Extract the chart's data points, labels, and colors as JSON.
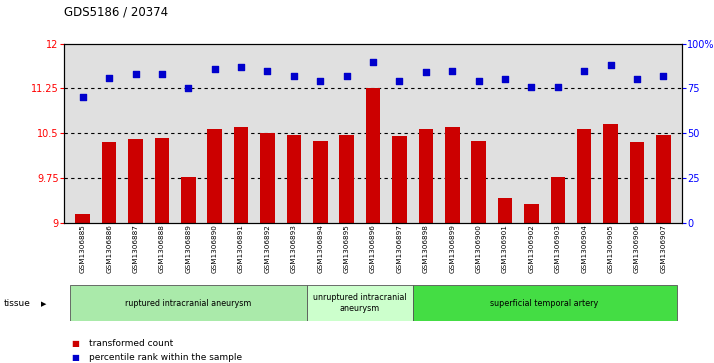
{
  "title": "GDS5186 / 20374",
  "samples": [
    "GSM1306885",
    "GSM1306886",
    "GSM1306887",
    "GSM1306888",
    "GSM1306889",
    "GSM1306890",
    "GSM1306891",
    "GSM1306892",
    "GSM1306893",
    "GSM1306894",
    "GSM1306895",
    "GSM1306896",
    "GSM1306897",
    "GSM1306898",
    "GSM1306899",
    "GSM1306900",
    "GSM1306901",
    "GSM1306902",
    "GSM1306903",
    "GSM1306904",
    "GSM1306905",
    "GSM1306906",
    "GSM1306907"
  ],
  "transformed_count": [
    9.15,
    10.35,
    10.4,
    10.42,
    9.78,
    10.58,
    10.6,
    10.5,
    10.47,
    10.38,
    10.47,
    11.25,
    10.46,
    10.58,
    10.6,
    10.38,
    9.42,
    9.32,
    9.78,
    10.57,
    10.65,
    10.35,
    10.47
  ],
  "percentile_rank": [
    70,
    81,
    83,
    83,
    75,
    86,
    87,
    85,
    82,
    79,
    82,
    90,
    79,
    84,
    85,
    79,
    80,
    76,
    76,
    85,
    88,
    80,
    82
  ],
  "ylim_left": [
    9,
    12
  ],
  "ylim_right": [
    0,
    100
  ],
  "yticks_left": [
    9,
    9.75,
    10.5,
    11.25,
    12
  ],
  "yticks_right": [
    0,
    25,
    50,
    75,
    100
  ],
  "hlines": [
    9.75,
    10.5,
    11.25
  ],
  "bar_color": "#cc0000",
  "dot_color": "#0000cc",
  "groups": [
    {
      "label": "ruptured intracranial aneurysm",
      "start": 0,
      "end": 9,
      "color": "#aaeaaa"
    },
    {
      "label": "unruptured intracranial\naneurysm",
      "start": 9,
      "end": 13,
      "color": "#ccffcc"
    },
    {
      "label": "superficial temporal artery",
      "start": 13,
      "end": 23,
      "color": "#44dd44"
    }
  ],
  "tissue_label": "tissue",
  "legend_bar_label": "transformed count",
  "legend_dot_label": "percentile rank within the sample",
  "plot_bg": "#e0e0e0"
}
